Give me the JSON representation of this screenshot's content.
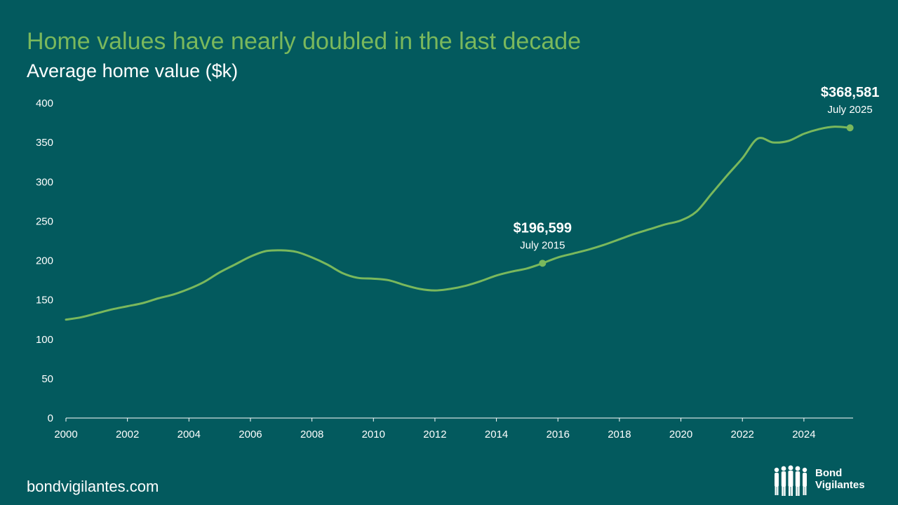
{
  "header": {
    "title": "Home values have nearly doubled in the last decade",
    "subtitle": "Average home value ($k)"
  },
  "footer": {
    "source": "bondvigilantes.com",
    "logo_line1": "Bond",
    "logo_line2": "Vigilantes"
  },
  "colors": {
    "background": "#035a5e",
    "line": "#7ab85c",
    "text": "#ffffff",
    "title": "#7ab85c"
  },
  "chart_data": {
    "type": "line",
    "title": "Home values have nearly doubled in the last decade",
    "ylabel": "Average home value ($k)",
    "xlabel": "",
    "xlim": [
      2000,
      2025.6
    ],
    "ylim": [
      0,
      400
    ],
    "y_ticks": [
      0,
      50,
      100,
      150,
      200,
      250,
      300,
      350,
      400
    ],
    "x_ticks": [
      2000,
      2002,
      2004,
      2006,
      2008,
      2010,
      2012,
      2014,
      2016,
      2018,
      2020,
      2022,
      2024
    ],
    "grid": false,
    "legend": "none",
    "series": [
      {
        "x": [
          2000.0,
          2000.5,
          2001.0,
          2001.5,
          2002.0,
          2002.5,
          2003.0,
          2003.5,
          2004.0,
          2004.5,
          2005.0,
          2005.5,
          2006.0,
          2006.5,
          2007.0,
          2007.5,
          2008.0,
          2008.5,
          2009.0,
          2009.5,
          2010.0,
          2010.5,
          2011.0,
          2011.5,
          2012.0,
          2012.5,
          2013.0,
          2013.5,
          2014.0,
          2014.5,
          2015.0,
          2015.5,
          2016.0,
          2016.5,
          2017.0,
          2017.5,
          2018.0,
          2018.5,
          2019.0,
          2019.5,
          2020.0,
          2020.5,
          2021.0,
          2021.5,
          2022.0,
          2022.5,
          2023.0,
          2023.5,
          2024.0,
          2024.5,
          2025.0,
          2025.5
        ],
        "values": [
          125,
          128,
          133,
          138,
          142,
          146,
          152,
          157,
          164,
          173,
          185,
          195,
          205,
          212,
          213,
          211,
          204,
          195,
          184,
          178,
          177,
          175,
          169,
          164,
          162,
          164,
          168,
          174,
          181,
          186,
          190,
          196.6,
          204,
          209,
          214,
          220,
          227,
          234,
          240,
          246,
          251,
          262,
          285,
          308,
          330,
          355,
          350,
          352,
          361,
          367,
          370,
          368.6
        ]
      }
    ],
    "annotations": [
      {
        "x": 2015.5,
        "y": 196.6,
        "value": "$196,599",
        "label": "July 2015"
      },
      {
        "x": 2025.5,
        "y": 368.6,
        "value": "$368,581",
        "label": "July 2025"
      }
    ]
  }
}
